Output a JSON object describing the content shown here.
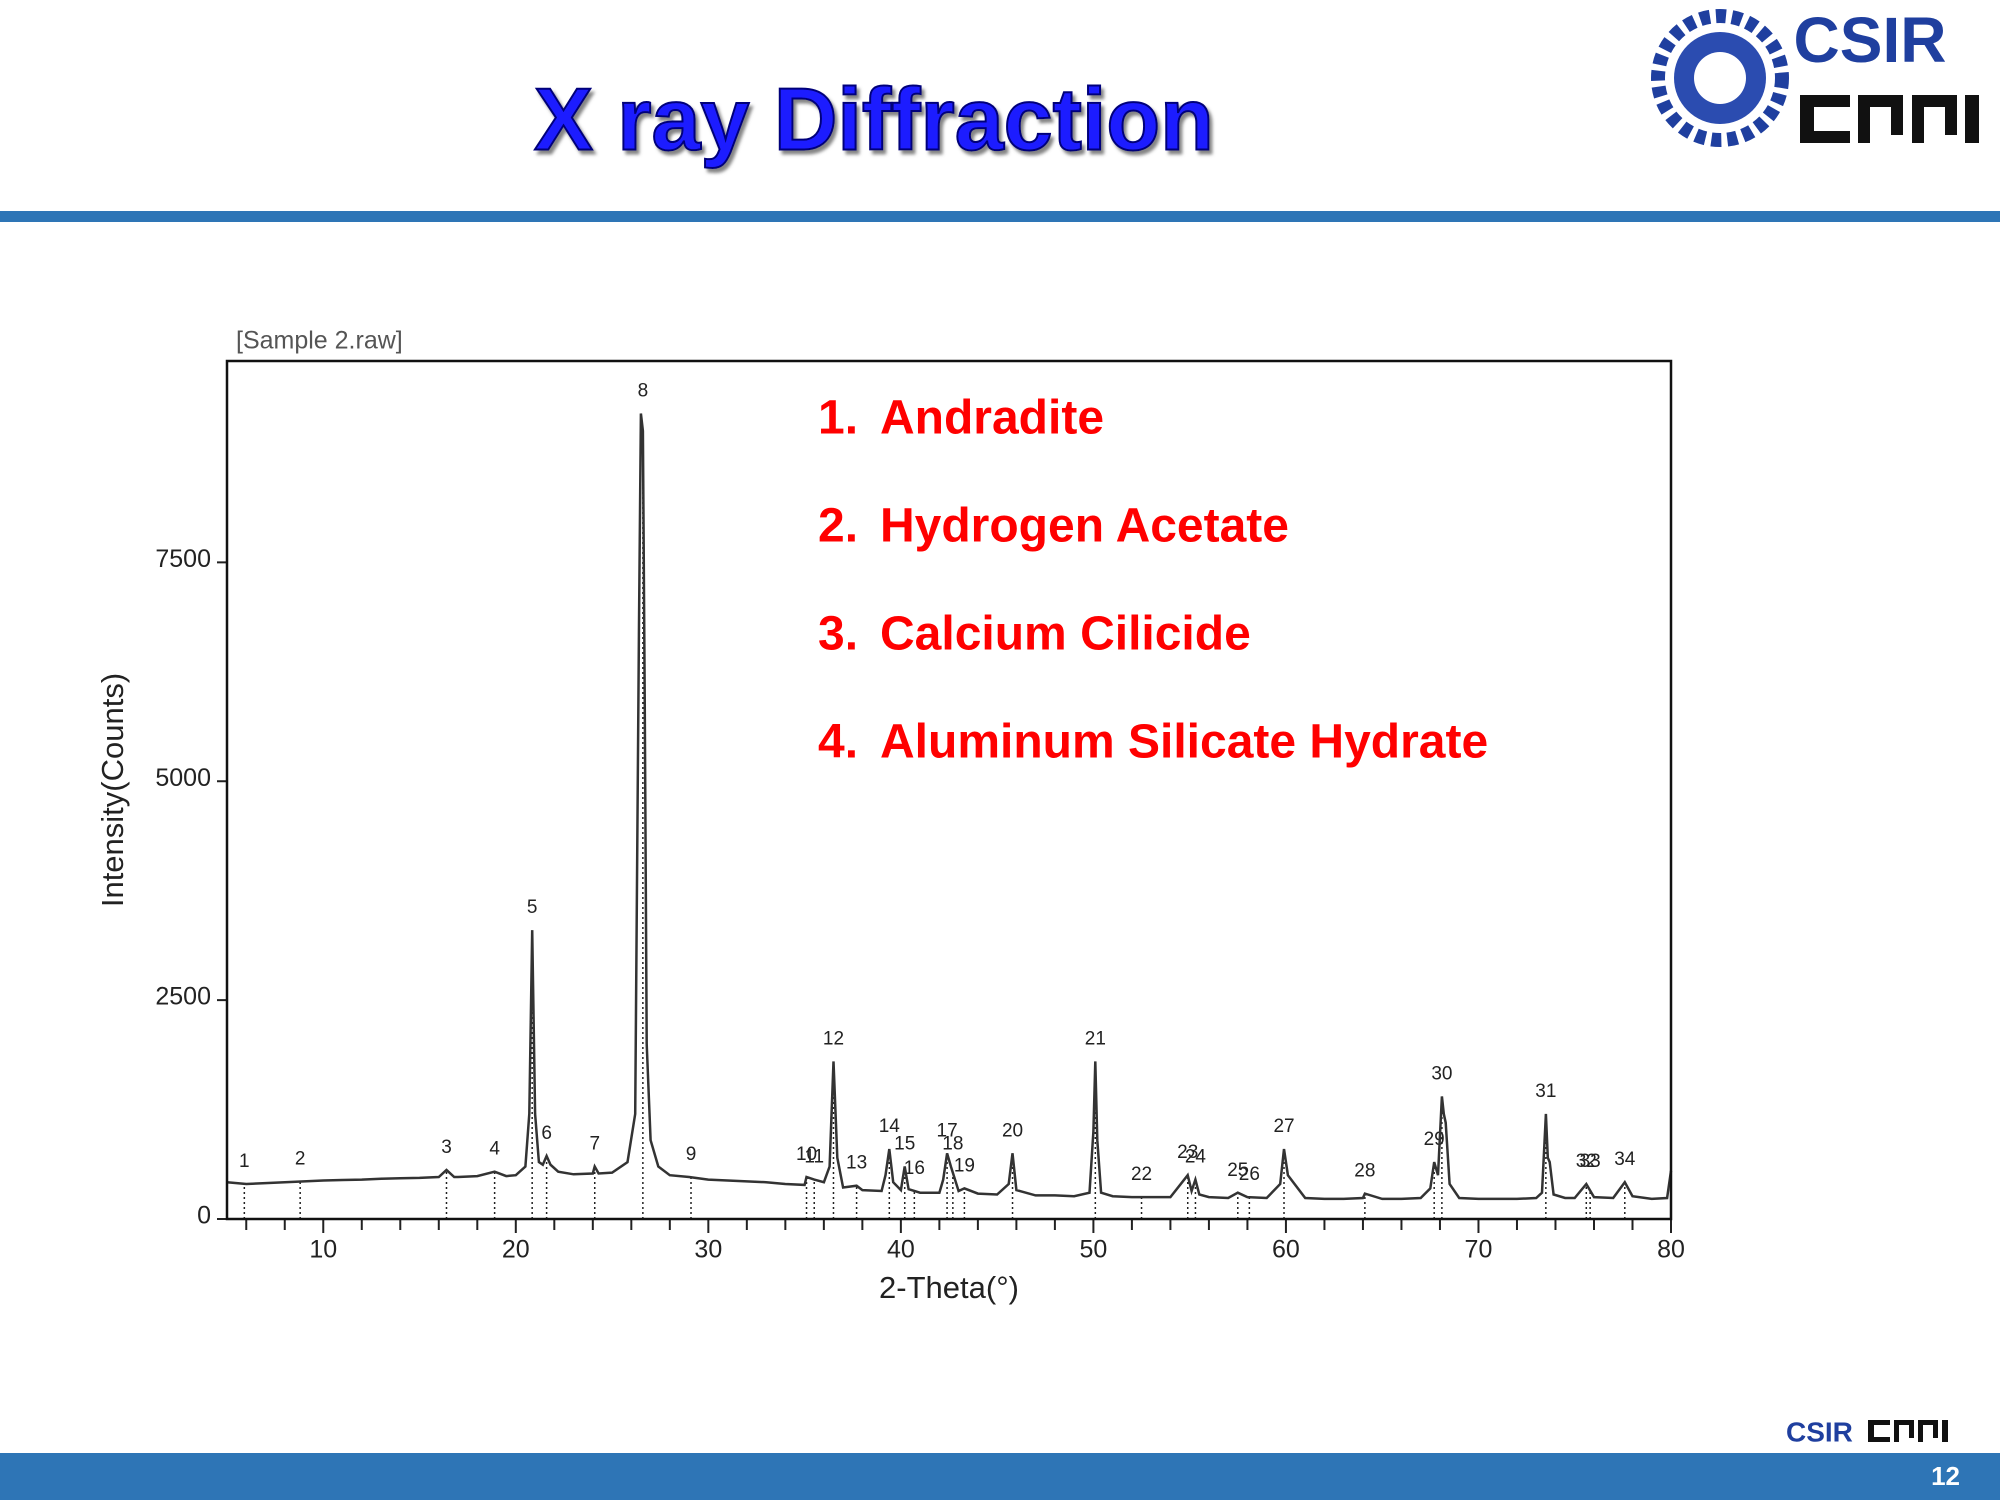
{
  "header": {
    "title": "X ray Diffraction",
    "logo_text": "CSIR"
  },
  "footer": {
    "logo_text": "CSIR",
    "page_number": "12"
  },
  "chart_data": {
    "type": "line",
    "subtitle": "[Sample 2.raw]",
    "x_label": "2-Theta(°)",
    "y_label": "Intensity(Counts)",
    "color": "#333333",
    "x": [
      5,
      6,
      7,
      8,
      9,
      10,
      11,
      12,
      13,
      14,
      15,
      16,
      16.4,
      16.8,
      17,
      18,
      18.9,
      19.5,
      20,
      20.5,
      20.7,
      20.85,
      21.0,
      21.2,
      21.4,
      21.6,
      21.8,
      22.2,
      23,
      24,
      24.1,
      24.3,
      25,
      25.8,
      26.2,
      26.4,
      26.5,
      26.6,
      26.7,
      26.8,
      27.0,
      27.4,
      28,
      29,
      30,
      31,
      32,
      33,
      34,
      35,
      35.1,
      35.5,
      36,
      36.3,
      36.5,
      36.7,
      37,
      37.7,
      38,
      39,
      39.2,
      39.4,
      39.6,
      40,
      40.2,
      40.4,
      41,
      42,
      42.2,
      42.4,
      42.6,
      43,
      43.3,
      44,
      45,
      45.6,
      45.8,
      46,
      47,
      48,
      49,
      49.8,
      50.0,
      50.1,
      50.2,
      50.4,
      51,
      52,
      53,
      54,
      54.9,
      55.1,
      55.3,
      55.5,
      56,
      57,
      57.5,
      58,
      59,
      59.7,
      59.9,
      60.1,
      61,
      62,
      63,
      64,
      64.1,
      65,
      66,
      67,
      67.5,
      67.7,
      67.9,
      68.1,
      68.2,
      68.3,
      68.5,
      69,
      70,
      71,
      72,
      73,
      73.3,
      73.5,
      73.6,
      73.7,
      73.9,
      74.5,
      75,
      75.6,
      76,
      77,
      77.6,
      78,
      79,
      79.8,
      80
    ],
    "values": [
      420,
      400,
      410,
      420,
      430,
      440,
      445,
      450,
      460,
      465,
      470,
      480,
      560,
      480,
      480,
      490,
      540,
      490,
      500,
      600,
      1200,
      3300,
      1200,
      650,
      620,
      720,
      620,
      540,
      510,
      520,
      600,
      520,
      530,
      650,
      1200,
      6800,
      9200,
      9000,
      5800,
      2000,
      900,
      600,
      500,
      480,
      450,
      440,
      430,
      420,
      400,
      390,
      480,
      450,
      420,
      600,
      1800,
      700,
      360,
      380,
      330,
      320,
      500,
      800,
      420,
      330,
      600,
      340,
      300,
      300,
      450,
      750,
      600,
      320,
      350,
      290,
      280,
      400,
      750,
      330,
      270,
      270,
      260,
      300,
      1000,
      1800,
      900,
      300,
      260,
      250,
      250,
      250,
      500,
      320,
      450,
      280,
      250,
      240,
      300,
      250,
      240,
      400,
      800,
      500,
      240,
      230,
      230,
      240,
      290,
      230,
      230,
      240,
      350,
      650,
      500,
      1400,
      1200,
      1100,
      400,
      240,
      230,
      230,
      230,
      240,
      300,
      1200,
      700,
      650,
      280,
      240,
      240,
      400,
      250,
      240,
      420,
      260,
      230,
      240,
      550
    ],
    "peak_labels": [
      1,
      2,
      3,
      4,
      5,
      6,
      7,
      8,
      9,
      10,
      11,
      12,
      13,
      14,
      15,
      16,
      17,
      18,
      19,
      20,
      21,
      22,
      23,
      24,
      25,
      26,
      27,
      28,
      29,
      30,
      31,
      32,
      33,
      34
    ],
    "peak_x": [
      5.9,
      8.8,
      16.4,
      18.9,
      20.85,
      21.6,
      24.1,
      26.6,
      29.1,
      35.1,
      35.5,
      36.5,
      37.7,
      39.4,
      40.2,
      40.7,
      42.4,
      42.7,
      43.3,
      45.8,
      50.1,
      52.5,
      54.9,
      55.3,
      57.5,
      58.1,
      59.9,
      64.1,
      67.7,
      68.1,
      73.5,
      75.6,
      75.8,
      77.6
    ],
    "annotations": [
      {
        "number": "1.",
        "text": "Andradite"
      },
      {
        "number": "2.",
        "text": "Hydrogen Acetate"
      },
      {
        "number": "3.",
        "text": "Calcium Cilicide"
      },
      {
        "number": "4.",
        "text": "Aluminum Silicate Hydrate"
      }
    ],
    "annotation_color": "#ff0000",
    "xlim": [
      5,
      80
    ],
    "ylim": [
      0,
      9800
    ],
    "xticks": [
      10,
      20,
      30,
      40,
      50,
      60,
      70,
      80
    ],
    "xminorticks": [
      6,
      8,
      12,
      14,
      16,
      18,
      22,
      24,
      26,
      28,
      32,
      34,
      36,
      38,
      42,
      44,
      46,
      48,
      52,
      54,
      56,
      58,
      62,
      64,
      66,
      68,
      72,
      74,
      76,
      78
    ],
    "yticks": [
      0,
      2500,
      5000,
      7500
    ]
  }
}
